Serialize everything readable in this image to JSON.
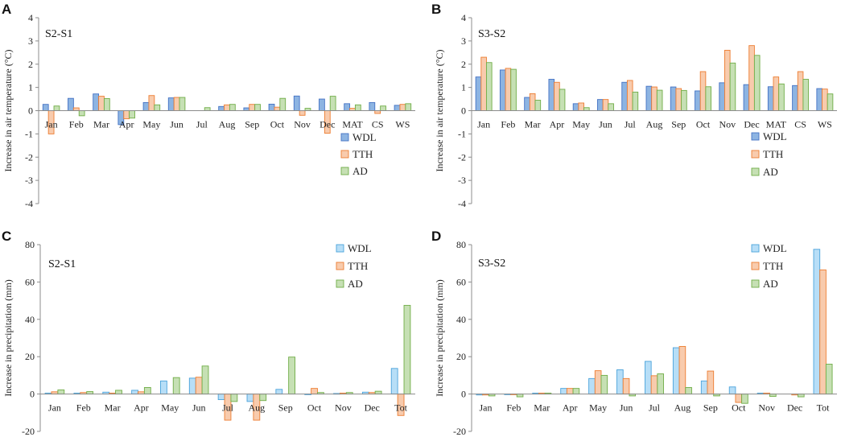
{
  "chart_data": [
    {
      "panel": "A",
      "type": "bar",
      "subtitle": "S2-S1",
      "ylabel": "Increase in air temperature (°C)",
      "ylim": [
        -4,
        4
      ],
      "yticks": [
        -4,
        -3,
        -2,
        -1,
        0,
        1,
        2,
        3,
        4
      ],
      "legend_position": "right-middle",
      "categories": [
        "Jan",
        "Feb",
        "Mar",
        "Apr",
        "May",
        "Jun",
        "Jul",
        "Aug",
        "Sep",
        "Oct",
        "Nov",
        "Dec",
        "MAT",
        "CS",
        "WS"
      ],
      "series": [
        {
          "name": "WDL",
          "color": "#8DB4E2",
          "stroke": "#4472C4",
          "values": [
            0.27,
            0.53,
            0.72,
            -0.6,
            0.35,
            0.55,
            0.0,
            0.18,
            0.12,
            0.28,
            0.63,
            0.5,
            0.3,
            0.35,
            0.23
          ]
        },
        {
          "name": "TTH",
          "color": "#F8CBAD",
          "stroke": "#ED7D31",
          "values": [
            -1.0,
            0.12,
            0.62,
            -0.35,
            0.65,
            0.57,
            0.0,
            0.25,
            0.27,
            0.15,
            -0.2,
            -0.97,
            0.1,
            -0.12,
            0.27
          ]
        },
        {
          "name": "AD",
          "color": "#C6E0B4",
          "stroke": "#70AD47",
          "values": [
            0.2,
            -0.22,
            0.52,
            -0.32,
            0.25,
            0.57,
            0.13,
            0.27,
            0.27,
            0.53,
            0.1,
            0.62,
            0.25,
            0.2,
            0.3
          ]
        }
      ]
    },
    {
      "panel": "B",
      "type": "bar",
      "subtitle": "S3-S2",
      "ylabel": "Increase in air temperature (°C)",
      "ylim": [
        -4,
        4
      ],
      "yticks": [
        -4,
        -3,
        -2,
        -1,
        0,
        1,
        2,
        3,
        4
      ],
      "legend_position": "right-middle",
      "categories": [
        "Jan",
        "Feb",
        "Mar",
        "Apr",
        "May",
        "Jun",
        "Jul",
        "Aug",
        "Sep",
        "Oct",
        "Nov",
        "Dec",
        "MAT",
        "CS",
        "WS"
      ],
      "series": [
        {
          "name": "WDL",
          "color": "#8DB4E2",
          "stroke": "#4472C4",
          "values": [
            1.45,
            1.75,
            0.57,
            1.35,
            0.3,
            0.48,
            1.22,
            1.05,
            1.02,
            0.85,
            1.2,
            1.12,
            1.03,
            1.08,
            0.95
          ]
        },
        {
          "name": "TTH",
          "color": "#F8CBAD",
          "stroke": "#ED7D31",
          "values": [
            2.3,
            1.82,
            0.73,
            1.22,
            0.33,
            0.48,
            1.3,
            1.02,
            0.95,
            1.68,
            2.6,
            2.8,
            1.45,
            1.68,
            0.93
          ]
        },
        {
          "name": "AD",
          "color": "#C6E0B4",
          "stroke": "#70AD47",
          "values": [
            2.07,
            1.78,
            0.45,
            0.92,
            0.13,
            0.3,
            0.8,
            0.88,
            0.87,
            1.03,
            2.05,
            2.38,
            1.15,
            1.35,
            0.72
          ]
        }
      ]
    },
    {
      "panel": "C",
      "type": "bar",
      "subtitle": "S2-S1",
      "ylabel": "Increase in precipitation (mm)",
      "ylim": [
        -20,
        80
      ],
      "yticks": [
        -20,
        0,
        20,
        40,
        60,
        80
      ],
      "legend_position": "top-right",
      "categories": [
        "Jan",
        "Feb",
        "Mar",
        "Apr",
        "May",
        "Jun",
        "Jul",
        "Aug",
        "Sep",
        "Oct",
        "Nov",
        "Dec",
        "Tot"
      ],
      "series": [
        {
          "name": "WDL",
          "color": "#B7DEF7",
          "stroke": "#4BA3DB",
          "values": [
            0.5,
            0.5,
            1.0,
            2.0,
            7.0,
            8.5,
            -3.0,
            -4.0,
            2.5,
            -0.3,
            0.3,
            1.0,
            13.7
          ]
        },
        {
          "name": "TTH",
          "color": "#F8CBAD",
          "stroke": "#ED7D31",
          "values": [
            1.2,
            0.8,
            0.5,
            1.2,
            0.0,
            9.0,
            -14.0,
            -14.0,
            0.0,
            3.0,
            0.5,
            0.8,
            -11.5
          ]
        },
        {
          "name": "AD",
          "color": "#C6E0B4",
          "stroke": "#70AD47",
          "values": [
            2.2,
            1.3,
            2.0,
            3.5,
            8.8,
            15.0,
            -4.0,
            -3.5,
            19.8,
            0.8,
            0.8,
            1.5,
            47.5
          ]
        }
      ]
    },
    {
      "panel": "D",
      "type": "bar",
      "subtitle": "S3-S2",
      "ylabel": "Increase in precipitation (mm)",
      "ylim": [
        -20,
        80
      ],
      "yticks": [
        -20,
        0,
        20,
        40,
        60,
        80
      ],
      "legend_position": "top-right",
      "categories": [
        "Jan",
        "Feb",
        "Mar",
        "Apr",
        "May",
        "Jun",
        "Jul",
        "Aug",
        "Sep",
        "Oct",
        "Nov",
        "Dec",
        "Tot"
      ],
      "series": [
        {
          "name": "WDL",
          "color": "#B7DEF7",
          "stroke": "#4BA3DB",
          "values": [
            -0.5,
            -0.3,
            0.5,
            3.0,
            8.3,
            13.0,
            17.5,
            24.8,
            7.0,
            3.8,
            0.5,
            0.0,
            77.5
          ]
        },
        {
          "name": "TTH",
          "color": "#F8CBAD",
          "stroke": "#ED7D31",
          "values": [
            -0.5,
            -0.3,
            0.5,
            3.0,
            12.5,
            8.3,
            9.8,
            25.5,
            12.3,
            -4.5,
            0.5,
            -0.5,
            66.5
          ]
        },
        {
          "name": "AD",
          "color": "#C6E0B4",
          "stroke": "#70AD47",
          "values": [
            -1.0,
            -1.5,
            0.5,
            3.0,
            10.0,
            -1.0,
            10.8,
            3.5,
            -1.0,
            -5.0,
            -1.3,
            -1.5,
            16.0
          ]
        }
      ]
    }
  ]
}
